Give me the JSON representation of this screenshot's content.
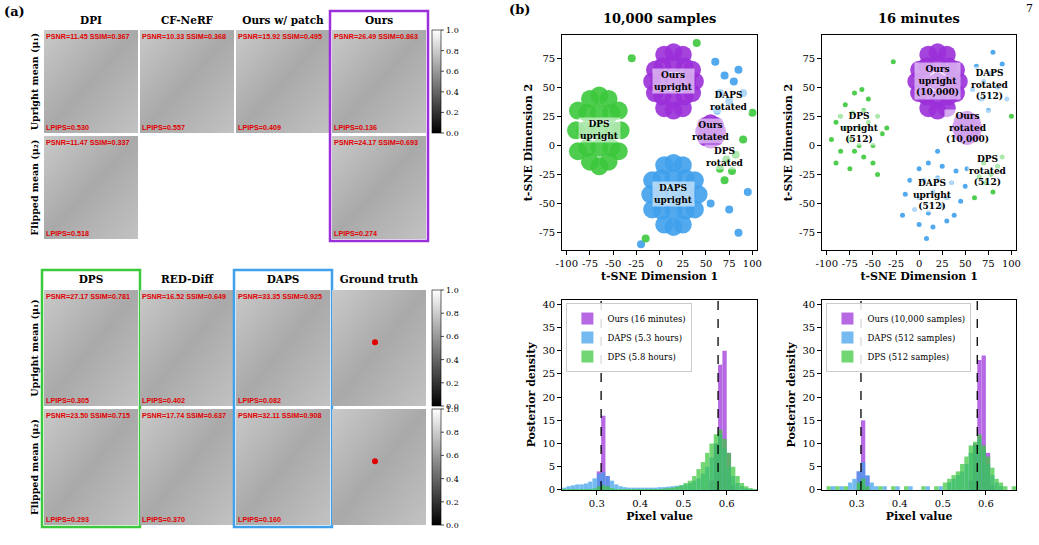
{
  "page_number": "7",
  "panel_labels": [
    "(a)",
    "(b)"
  ],
  "panel_a": {
    "row_labels": [
      "Upright mean (μ₁)",
      "Flipped mean (μ₂)"
    ],
    "colorbar": {
      "range": [
        0,
        1
      ],
      "ticks": [
        {
          "value": 0,
          "label": "0.0"
        },
        0.2,
        0.4,
        0.6,
        0.8,
        {
          "value": 1,
          "label": "1.0"
        }
      ]
    },
    "groups": [
      {
        "colorbar_rows": [
          0
        ],
        "columns": [
          {
            "title": "DPI",
            "cells": [
              {
                "top_text": "PSNR=11.45 SSIM=0.367",
                "bottom_text": "LPIPS=0.530"
              },
              {
                "top_text": "PSNR=11.47 SSIM=0.337",
                "bottom_text": "LPIPS=0.518"
              }
            ]
          },
          {
            "title": "CF-NeRF",
            "cells": [
              {
                "top_text": "PSNR=10.33 SSIM=0.368",
                "bottom_text": "LPIPS=0.557"
              },
              null
            ]
          },
          {
            "title": "Ours w/ patch",
            "cells": [
              {
                "top_text": "PSNR=15.92 SSIM=0.495",
                "bottom_text": "LPIPS=0.409"
              },
              null
            ]
          },
          {
            "title": "Ours",
            "color": "#9b30d9",
            "cells": [
              {
                "top_text": "PSNR=26.49 SSIM=0.863",
                "bottom_text": "LPIPS=0.136"
              },
              {
                "top_text": "PSNR=24.17 SSIM=0.693",
                "bottom_text": "LPIPS=0.274"
              }
            ]
          }
        ]
      },
      {
        "colorbar_rows": [
          0,
          1
        ],
        "columns": [
          {
            "title": "DPS",
            "color": "#3cc83c",
            "cells": [
              {
                "top_text": "PSNR=27.17 SSIM=0.781",
                "bottom_text": "LPIPS=0.305"
              },
              {
                "top_text": "PSNR=23.50 SSIM=0.715",
                "bottom_text": "LPIPS=0.293"
              }
            ]
          },
          {
            "title": "RED-Diff",
            "cells": [
              {
                "top_text": "PSNR=16.52 SSIM=0.649",
                "bottom_text": "LPIPS=0.402"
              },
              {
                "top_text": "PSNR=17.74 SSIM=0.637",
                "bottom_text": "LPIPS=0.370"
              }
            ]
          },
          {
            "title": "DAPS",
            "color": "#3fa0ec",
            "cells": [
              {
                "top_text": "PSNR=33.35 SSIM=0.925",
                "bottom_text": "LPIPS=0.082"
              },
              {
                "top_text": "PSNR=32.11 SSIM=0.908",
                "bottom_text": "LPIPS=0.160"
              }
            ]
          },
          {
            "title": "Ground truth",
            "cells": [
              {},
              {}
            ]
          }
        ]
      }
    ]
  },
  "chart_data": [
    {
      "type": "scatter",
      "title": "10,000 samples",
      "x_label": "t-SNE Dimension 1",
      "y_label": "t-SNE Dimension 2",
      "xlim": [
        -105,
        105
      ],
      "ylim": [
        -90,
        95
      ],
      "xticks": [
        -100,
        -75,
        -50,
        -25,
        0,
        25,
        50,
        75,
        100
      ],
      "yticks": [
        -75,
        -50,
        -25,
        0,
        25,
        50,
        75
      ],
      "grid": false,
      "series": [
        {
          "name": "Ours upright",
          "color": "#9b30d9",
          "x": [
            15,
            0,
            30,
            15,
            15,
            3,
            27,
            3,
            27,
            -8,
            38,
            15,
            15,
            -5,
            35,
            -5,
            35,
            5,
            25,
            5,
            25
          ],
          "y": [
            55,
            55,
            55,
            40,
            70,
            42,
            42,
            68,
            68,
            55,
            55,
            30,
            80,
            45,
            65,
            65,
            45,
            78,
            78,
            32,
            32
          ]
        },
        {
          "name": "Ours rotated",
          "color": "#9b30d9",
          "x": [
            55,
            48,
            62,
            55,
            55,
            50,
            60,
            50,
            60
          ],
          "y": [
            12,
            12,
            12,
            5,
            19,
            7,
            17,
            17,
            7
          ]
        },
        {
          "name": "DAPS upright",
          "color": "#3fa0ec",
          "x": [
            15,
            0,
            30,
            15,
            15,
            -10,
            42,
            2,
            28,
            2,
            28,
            15,
            15,
            -8,
            38,
            -8,
            38,
            5,
            25,
            5,
            25
          ],
          "y": [
            -42,
            -42,
            -42,
            -28,
            -56,
            -42,
            -42,
            -28,
            -28,
            -56,
            -56,
            -15,
            -70,
            -55,
            -30,
            -30,
            -55,
            -68,
            -68,
            -17,
            -17
          ]
        },
        {
          "name": "DAPS rotated",
          "color": "#3fa0ec",
          "x": [
            60,
            70,
            80,
            65,
            75,
            85,
            90,
            62,
            55,
            75,
            95,
            -20,
            85
          ],
          "y": [
            72,
            60,
            55,
            45,
            38,
            65,
            45,
            30,
            -50,
            -55,
            -40,
            -85,
            -75
          ]
        },
        {
          "name": "DPS upright",
          "color": "#3cc83c",
          "x": [
            -65,
            -80,
            -50,
            -65,
            -65,
            -90,
            -42,
            -78,
            -52,
            -78,
            -52,
            -65,
            -65,
            -88,
            -44,
            -88,
            -44,
            -75,
            -55,
            -75,
            -55
          ],
          "y": [
            13,
            13,
            13,
            -2,
            28,
            13,
            13,
            -2,
            -2,
            28,
            28,
            43,
            -18,
            30,
            30,
            -5,
            -5,
            40,
            40,
            -14,
            -14
          ]
        },
        {
          "name": "DPS rotated",
          "color": "#3cc83c",
          "x": [
            72,
            78,
            70,
            82,
            65,
            -30,
            40,
            100,
            -15,
            90
          ],
          "y": [
            -12,
            -22,
            -30,
            -8,
            -20,
            75,
            88,
            28,
            -80,
            5
          ]
        }
      ]
    },
    {
      "type": "scatter",
      "title": "16 minutes",
      "x_label": "t-SNE Dimension 1",
      "y_label": "t-SNE Dimension 2",
      "xlim": [
        -105,
        105
      ],
      "ylim": [
        -90,
        95
      ],
      "xticks": [
        -100,
        -75,
        -50,
        -25,
        0,
        25,
        50,
        75,
        100
      ],
      "yticks": [
        -75,
        -50,
        -25,
        0,
        25,
        50,
        75
      ],
      "grid": false,
      "series": [
        {
          "name": "Ours upright (10,000)",
          "color": "#9b30d9",
          "x": [
            20,
            5,
            35,
            20,
            20,
            8,
            32,
            8,
            32,
            -3,
            43,
            20,
            20,
            0,
            40,
            0,
            40,
            10,
            30,
            10,
            30
          ],
          "y": [
            55,
            55,
            55,
            40,
            70,
            42,
            42,
            68,
            68,
            55,
            55,
            30,
            80,
            45,
            65,
            65,
            45,
            78,
            78,
            32,
            32
          ]
        },
        {
          "name": "Ours rotated (10,000)",
          "color": "#9b30d9",
          "x": [
            52,
            45,
            59,
            52,
            52,
            47,
            57,
            47,
            57
          ],
          "y": [
            15,
            15,
            15,
            8,
            22,
            10,
            20,
            20,
            10
          ]
        },
        {
          "name": "DAPS upright (512)",
          "color": "#3fa0ec",
          "x": [
            0,
            10,
            25,
            40,
            -10,
            5,
            20,
            35,
            50,
            -15,
            0,
            15,
            30,
            45,
            -5,
            10,
            25,
            38,
            0,
            15,
            30,
            -18,
            20,
            52,
            8
          ],
          "y": [
            -20,
            -15,
            -18,
            -22,
            -30,
            -30,
            -28,
            -32,
            -35,
            -42,
            -45,
            -40,
            -45,
            -48,
            -55,
            -58,
            -52,
            -60,
            -68,
            -70,
            -65,
            -60,
            -5,
            -20,
            -80
          ]
        },
        {
          "name": "DAPS rotated (512)",
          "color": "#3fa0ec",
          "x": [
            62,
            70,
            78,
            85,
            68,
            90,
            75,
            58,
            95,
            80
          ],
          "y": [
            68,
            55,
            62,
            50,
            40,
            70,
            30,
            48,
            40,
            80
          ]
        },
        {
          "name": "DPS upright (512)",
          "color": "#3cc83c",
          "x": [
            -90,
            -80,
            -70,
            -55,
            -45,
            -40,
            -50,
            -60,
            -75,
            -85,
            -95,
            -65,
            -75,
            -55,
            -85,
            -60,
            -70,
            -50,
            -80,
            -65,
            -90,
            -45,
            -62,
            -35,
            -72
          ],
          "y": [
            20,
            35,
            45,
            40,
            25,
            10,
            0,
            -10,
            -20,
            -5,
            5,
            15,
            5,
            20,
            25,
            30,
            -5,
            -15,
            15,
            0,
            -15,
            -25,
            48,
            15,
            28
          ]
        },
        {
          "name": "DPS rotated (512)",
          "color": "#3cc83c",
          "x": [
            70,
            78,
            72,
            85,
            65,
            80,
            90,
            -28,
            100,
            60
          ],
          "y": [
            -15,
            -25,
            -32,
            -18,
            -27,
            -40,
            -10,
            72,
            25,
            -45
          ]
        }
      ]
    },
    {
      "type": "histogram",
      "x_label": "Pixel value",
      "y_label": "Posterior density",
      "xlim": [
        0.22,
        0.67
      ],
      "ylim": [
        0,
        41
      ],
      "xticks": [
        0.3,
        0.4,
        0.5,
        0.6
      ],
      "yticks": [
        0,
        5,
        10,
        15,
        20,
        25,
        30,
        35,
        40
      ],
      "grid": false,
      "legend": "upper left",
      "reference_lines": [
        0.31,
        0.58
      ],
      "bins": [
        0.22,
        0.23,
        0.24,
        0.25,
        0.26,
        0.27,
        0.28,
        0.29,
        0.3,
        0.31,
        0.32,
        0.33,
        0.34,
        0.35,
        0.36,
        0.37,
        0.38,
        0.39,
        0.4,
        0.41,
        0.42,
        0.43,
        0.44,
        0.45,
        0.46,
        0.47,
        0.48,
        0.49,
        0.5,
        0.51,
        0.52,
        0.53,
        0.54,
        0.55,
        0.56,
        0.57,
        0.58,
        0.59,
        0.6,
        0.61,
        0.62,
        0.63,
        0.64,
        0.65,
        0.66,
        0.67
      ],
      "series": [
        {
          "name": "Ours (16 minutes)",
          "color": "#9b30d9",
          "values": [
            0,
            0,
            0,
            0,
            0,
            0,
            0,
            0,
            4,
            16,
            3,
            0,
            0,
            0,
            0,
            0,
            0,
            0,
            0,
            0,
            0,
            0,
            0,
            0,
            0,
            0,
            0,
            0,
            0,
            0,
            0,
            0,
            0,
            0,
            2,
            10,
            27,
            30,
            8,
            1,
            0,
            0,
            0,
            0,
            0
          ]
        },
        {
          "name": "DAPS (5.3 hours)",
          "color": "#3fa0ec",
          "values": [
            0.5,
            0.8,
            1,
            1.2,
            1.2,
            1.4,
            1.8,
            2.5,
            3.5,
            3.8,
            3,
            2,
            1.2,
            0.8,
            0.6,
            0.5,
            0.5,
            0.5,
            0.5,
            0.5,
            0.5,
            0.5,
            0.6,
            0.6,
            0.7,
            0.8,
            0.9,
            1,
            1.2,
            1.5,
            2,
            2.5,
            3.5,
            5,
            7,
            10,
            12,
            9,
            5,
            3,
            1.5,
            0.8,
            0.4,
            0.2,
            0.1
          ]
        },
        {
          "name": "DPS (5.8 hours)",
          "color": "#3cc83c",
          "values": [
            0.2,
            0.2,
            0.2,
            0.2,
            0.2,
            0.2,
            0.2,
            0.3,
            0.8,
            1,
            0.8,
            0.4,
            0.2,
            0.2,
            0.2,
            0.2,
            0.2,
            0.2,
            0.2,
            0.2,
            0.2,
            0.2,
            0.2,
            0.3,
            0.4,
            0.5,
            0.7,
            1,
            1.5,
            2,
            3,
            4.5,
            6,
            8,
            10,
            12,
            13,
            11,
            8,
            5,
            3,
            1.5,
            0.8,
            0.4,
            0.2
          ]
        }
      ]
    },
    {
      "type": "histogram",
      "x_label": "Pixel value",
      "y_label": "Posterior density",
      "xlim": [
        0.22,
        0.67
      ],
      "ylim": [
        0,
        41
      ],
      "xticks": [
        0.3,
        0.4,
        0.5,
        0.6
      ],
      "yticks": [
        0,
        5,
        10,
        15,
        20,
        25,
        30,
        35,
        40
      ],
      "grid": false,
      "legend": "upper left",
      "reference_lines": [
        0.31,
        0.58
      ],
      "bins": [
        0.22,
        0.23,
        0.24,
        0.25,
        0.26,
        0.27,
        0.28,
        0.29,
        0.3,
        0.31,
        0.32,
        0.33,
        0.34,
        0.35,
        0.36,
        0.37,
        0.38,
        0.39,
        0.4,
        0.41,
        0.42,
        0.43,
        0.44,
        0.45,
        0.46,
        0.47,
        0.48,
        0.49,
        0.5,
        0.51,
        0.52,
        0.53,
        0.54,
        0.55,
        0.56,
        0.57,
        0.58,
        0.59,
        0.6,
        0.61,
        0.62,
        0.63,
        0.64,
        0.65,
        0.66,
        0.67
      ],
      "series": [
        {
          "name": "Ours (10,000 samples)",
          "color": "#9b30d9",
          "values": [
            0,
            0,
            0,
            0,
            0,
            0,
            0,
            0,
            4,
            15,
            3,
            0,
            0,
            0,
            0,
            0,
            0,
            0,
            0,
            0,
            0,
            0,
            0,
            0,
            0,
            0,
            0,
            0,
            0,
            0,
            0,
            0,
            0,
            0,
            2,
            10,
            28,
            29,
            8,
            1,
            0,
            0,
            0,
            0,
            0
          ]
        },
        {
          "name": "DAPS (512 samples)",
          "color": "#3fa0ec",
          "values": [
            0,
            0,
            0.8,
            0,
            0.8,
            0,
            1.6,
            2.4,
            4,
            6,
            3.2,
            1.6,
            0.8,
            0,
            0.8,
            0,
            0,
            0.8,
            0,
            0,
            0.8,
            0,
            0,
            0,
            0.8,
            0,
            0,
            0.8,
            0,
            1.6,
            2.4,
            3.2,
            4,
            5.6,
            8,
            9.6,
            11,
            8.8,
            5.6,
            3.2,
            1.6,
            0.8,
            0,
            0,
            0
          ]
        },
        {
          "name": "DPS (512 samples)",
          "color": "#3cc83c",
          "values": [
            0,
            0.8,
            0,
            0.8,
            0,
            0.8,
            0,
            0,
            1.6,
            2.4,
            0.8,
            0,
            0,
            0.8,
            0,
            0,
            0.8,
            0,
            0,
            0.8,
            0,
            0,
            0,
            0.8,
            0,
            0,
            0.8,
            0,
            1.6,
            2.4,
            3.2,
            4,
            5.6,
            7.2,
            9.6,
            10.4,
            12,
            9.6,
            7.2,
            4.8,
            2.4,
            1.6,
            0.8,
            0,
            0.8
          ]
        }
      ]
    }
  ]
}
